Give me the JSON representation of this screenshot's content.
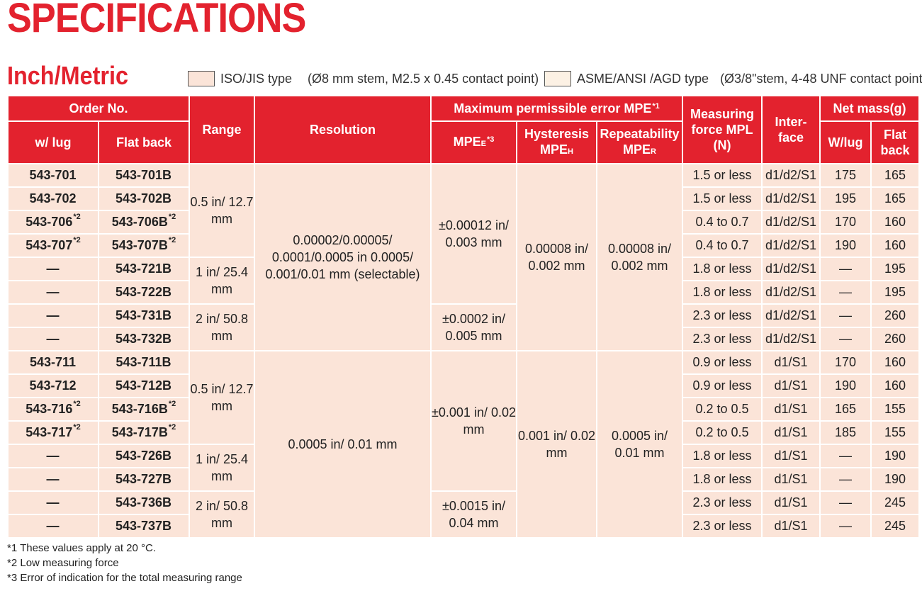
{
  "title": "SPECIFICATIONS",
  "subtitle": "Inch/Metric",
  "legend": {
    "iso_label": "ISO/JIS type",
    "iso_note": "(Ø8 mm stem, M2.5 x 0.45 contact point)",
    "asme_label": "ASME/ANSI /AGD type",
    "asme_note": "(Ø3/8\"stem, 4-48 UNF contact point)"
  },
  "colors": {
    "accent": "#e3222e",
    "iso_fill": "#fbe4d8",
    "asme_fill": "#fcf1e4"
  },
  "header": {
    "order_no": "Order No.",
    "w_lug": "w/ lug",
    "flat_back": "Flat back",
    "range": "Range",
    "resolution": "Resolution",
    "mpe": "Maximum permissible error MPE",
    "mpe_sup": "*1",
    "mpe_e": "MPE",
    "mpe_e_sub": "E",
    "mpe_e_sup": "*3",
    "hysteresis": "Hysteresis",
    "hysteresis_mpe": "MPE",
    "hysteresis_sub": "H",
    "repeatability": "Repeatability",
    "repeatability_mpe": "MPE",
    "repeatability_sub": "R",
    "measuring_force": "Measuring force MPL (N)",
    "interface": "Inter-face",
    "net_mass": "Net mass(g)",
    "w_lug_mass": "W/lug",
    "flat_back_mass": "Flat back"
  },
  "groups": [
    {
      "resolution": "0.00002/0.00005/ 0.0001/0.0005 in 0.0005/ 0.001/0.01 mm (selectable)",
      "hysteresis": "0.00008 in/ 0.002 mm",
      "repeatability": "0.00008 in/ 0.002 mm",
      "ranges": [
        "0.5 in/ 12.7 mm",
        "1 in/ 25.4 mm",
        "2 in/ 50.8 mm"
      ],
      "mpe_e": [
        "±0.00012 in/ 0.003 mm",
        "±0.0002 in/ 0.005 mm"
      ],
      "rows": [
        {
          "lug": "543-701",
          "lug_sup": "",
          "flat": "543-701B",
          "flat_sup": "",
          "force": "1.5 or less",
          "iface": "d1/d2/S1",
          "mass_lug": "175",
          "mass_flat": "165"
        },
        {
          "lug": "543-702",
          "lug_sup": "",
          "flat": "543-702B",
          "flat_sup": "",
          "force": "1.5 or less",
          "iface": "d1/d2/S1",
          "mass_lug": "195",
          "mass_flat": "165"
        },
        {
          "lug": "543-706",
          "lug_sup": "*2",
          "flat": "543-706B",
          "flat_sup": "*2",
          "force": "0.4 to 0.7",
          "iface": "d1/d2/S1",
          "mass_lug": "170",
          "mass_flat": "160"
        },
        {
          "lug": "543-707",
          "lug_sup": "*2",
          "flat": "543-707B",
          "flat_sup": "*2",
          "force": "0.4 to 0.7",
          "iface": "d1/d2/S1",
          "mass_lug": "190",
          "mass_flat": "160"
        },
        {
          "lug": "—",
          "lug_sup": "",
          "flat": "543-721B",
          "flat_sup": "",
          "force": "1.8 or less",
          "iface": "d1/d2/S1",
          "mass_lug": "—",
          "mass_flat": "195"
        },
        {
          "lug": "—",
          "lug_sup": "",
          "flat": "543-722B",
          "flat_sup": "",
          "force": "1.8 or less",
          "iface": "d1/d2/S1",
          "mass_lug": "—",
          "mass_flat": "195"
        },
        {
          "lug": "—",
          "lug_sup": "",
          "flat": "543-731B",
          "flat_sup": "",
          "force": "2.3 or less",
          "iface": "d1/d2/S1",
          "mass_lug": "—",
          "mass_flat": "260"
        },
        {
          "lug": "—",
          "lug_sup": "",
          "flat": "543-732B",
          "flat_sup": "",
          "force": "2.3 or less",
          "iface": "d1/d2/S1",
          "mass_lug": "—",
          "mass_flat": "260"
        }
      ]
    },
    {
      "resolution": "0.0005 in/ 0.01 mm",
      "hysteresis": "0.001 in/ 0.02 mm",
      "repeatability": "0.0005 in/ 0.01 mm",
      "ranges": [
        "0.5 in/ 12.7 mm",
        "1 in/ 25.4 mm",
        "2 in/ 50.8 mm"
      ],
      "mpe_e": [
        "±0.001 in/ 0.02 mm",
        "±0.0015 in/ 0.04 mm"
      ],
      "rows": [
        {
          "lug": "543-711",
          "lug_sup": "",
          "flat": "543-711B",
          "flat_sup": "",
          "force": "0.9 or less",
          "iface": "d1/S1",
          "mass_lug": "170",
          "mass_flat": "160"
        },
        {
          "lug": "543-712",
          "lug_sup": "",
          "flat": "543-712B",
          "flat_sup": "",
          "force": "0.9 or less",
          "iface": "d1/S1",
          "mass_lug": "190",
          "mass_flat": "160"
        },
        {
          "lug": "543-716",
          "lug_sup": "*2",
          "flat": "543-716B",
          "flat_sup": "*2",
          "force": "0.2 to 0.5",
          "iface": "d1/S1",
          "mass_lug": "165",
          "mass_flat": "155"
        },
        {
          "lug": "543-717",
          "lug_sup": "*2",
          "flat": "543-717B",
          "flat_sup": "*2",
          "force": "0.2 to 0.5",
          "iface": "d1/S1",
          "mass_lug": "185",
          "mass_flat": "155"
        },
        {
          "lug": "—",
          "lug_sup": "",
          "flat": "543-726B",
          "flat_sup": "",
          "force": "1.8 or less",
          "iface": "d1/S1",
          "mass_lug": "—",
          "mass_flat": "190"
        },
        {
          "lug": "—",
          "lug_sup": "",
          "flat": "543-727B",
          "flat_sup": "",
          "force": "1.8 or less",
          "iface": "d1/S1",
          "mass_lug": "—",
          "mass_flat": "190"
        },
        {
          "lug": "—",
          "lug_sup": "",
          "flat": "543-736B",
          "flat_sup": "",
          "force": "2.3 or less",
          "iface": "d1/S1",
          "mass_lug": "—",
          "mass_flat": "245"
        },
        {
          "lug": "—",
          "lug_sup": "",
          "flat": "543-737B",
          "flat_sup": "",
          "force": "2.3 or less",
          "iface": "d1/S1",
          "mass_lug": "—",
          "mass_flat": "245"
        }
      ]
    }
  ],
  "footnotes": [
    "*1 These values apply at 20 °C.",
    "*2 Low measuring force",
    "*3 Error of indication for the total measuring range"
  ]
}
